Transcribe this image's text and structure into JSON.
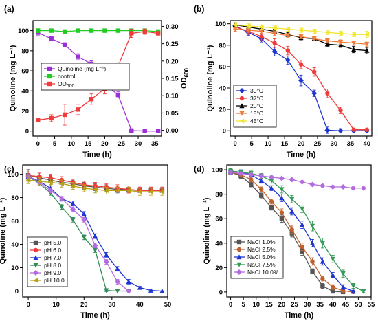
{
  "chart_data": [
    {
      "type": "line",
      "panel_label": "(a)",
      "xlabel": "Time (h)",
      "ylabel": "Quinoline (mg L⁻¹)",
      "y2label": "OD",
      "y2label_sub": "600",
      "xlim": [
        -1.5,
        37
      ],
      "ylim": [
        -5,
        110
      ],
      "y2lim": [
        -0.0167,
        0.3167
      ],
      "xticks": [
        0,
        5,
        10,
        15,
        20,
        25,
        30,
        35
      ],
      "yticks": [
        0,
        20,
        40,
        60,
        80,
        100
      ],
      "y2ticks": [
        0.0,
        0.05,
        0.1,
        0.15,
        0.2,
        0.25,
        0.3
      ],
      "legend": "center-left",
      "series": [
        {
          "name": "Quinoline (mg L⁻¹)",
          "color": "#9b30d8",
          "marker": "square",
          "axis": "left",
          "x": [
            0,
            4,
            8,
            12,
            16,
            20,
            24,
            28,
            32,
            36
          ],
          "y": [
            98,
            92,
            86,
            74,
            67,
            47,
            36,
            0.5,
            0,
            0
          ],
          "err": [
            3,
            2,
            2,
            3,
            3,
            4,
            3,
            2,
            0,
            0
          ]
        },
        {
          "name": "control",
          "color": "#22cc22",
          "marker": "square",
          "axis": "left",
          "x": [
            0,
            4,
            8,
            12,
            16,
            20,
            24,
            28,
            32,
            36
          ],
          "y": [
            100,
            100,
            99,
            100,
            100,
            100,
            100,
            100,
            100,
            99
          ],
          "err": [
            2,
            1,
            2,
            1,
            1,
            1,
            1,
            1,
            1,
            2
          ]
        },
        {
          "name": "OD",
          "name_sub": "600",
          "color": "#ee3b3b",
          "marker": "square",
          "axis": "right",
          "x": [
            0,
            4,
            8,
            12,
            16,
            20,
            24,
            28,
            32,
            36
          ],
          "y": [
            0.03,
            0.035,
            0.045,
            0.06,
            0.09,
            0.12,
            0.185,
            0.28,
            0.285,
            0.28
          ],
          "err": [
            0.003,
            0.01,
            0.03,
            0.015,
            0.015,
            0.015,
            0.01,
            0.012,
            0.008,
            0.005
          ]
        }
      ]
    },
    {
      "type": "line",
      "panel_label": "(b)",
      "xlabel": "Time (h)",
      "ylabel": "Quinoline (mg L⁻¹)",
      "xlim": [
        -1.5,
        41.5
      ],
      "ylim": [
        -5,
        103
      ],
      "xticks": [
        0,
        5,
        10,
        15,
        20,
        25,
        30,
        35,
        40
      ],
      "yticks": [
        0,
        20,
        40,
        60,
        80,
        100
      ],
      "legend": "center-left",
      "series": [
        {
          "name": "30°C",
          "color": "#1f35d0",
          "marker": "diamond",
          "x": [
            0,
            4,
            8,
            12,
            16,
            20,
            24,
            28,
            32,
            36,
            40
          ],
          "y": [
            98,
            92,
            86,
            74,
            66,
            47,
            35,
            0.5,
            0,
            0,
            0
          ],
          "err": [
            3,
            3,
            3,
            4,
            4,
            5,
            3,
            3,
            2,
            1,
            1
          ]
        },
        {
          "name": "37°C",
          "color": "#ee3b3b",
          "marker": "circle",
          "x": [
            0,
            4,
            8,
            12,
            16,
            20,
            24,
            28,
            32,
            36,
            40
          ],
          "y": [
            97,
            93,
            88,
            82,
            75,
            62,
            55,
            35,
            19,
            1,
            1
          ],
          "err": [
            2,
            3,
            3,
            4,
            4,
            4,
            4,
            4,
            3,
            1,
            1
          ]
        },
        {
          "name": "20°C",
          "color": "#000000",
          "marker": "triangle",
          "x": [
            0,
            4,
            8,
            12,
            16,
            20,
            24,
            28,
            32,
            36,
            40
          ],
          "y": [
            99,
            97,
            95,
            93,
            90,
            87,
            86,
            81,
            80,
            76,
            75
          ],
          "err": [
            2,
            1,
            2,
            2,
            2,
            2,
            2,
            2,
            2,
            3,
            3
          ]
        },
        {
          "name": "15°C",
          "color": "#f07c3a",
          "marker": "triangle-down",
          "x": [
            0,
            4,
            8,
            12,
            16,
            20,
            24,
            28,
            32,
            36,
            40
          ],
          "y": [
            95,
            94,
            93,
            91,
            89,
            88,
            86,
            84,
            83,
            82,
            81
          ],
          "err": [
            2,
            2,
            2,
            2,
            2,
            2,
            2,
            2,
            2,
            2,
            2
          ]
        },
        {
          "name": "45°C",
          "color": "#f2e62e",
          "marker": "triangle-left",
          "x": [
            0,
            4,
            8,
            12,
            16,
            20,
            24,
            28,
            32,
            36,
            40
          ],
          "y": [
            99,
            98,
            97,
            96,
            95,
            94,
            93,
            92,
            91,
            90,
            90
          ],
          "err": [
            2,
            2,
            2,
            2,
            2,
            2,
            2,
            2,
            2,
            2,
            3
          ]
        }
      ]
    },
    {
      "type": "line",
      "panel_label": "(c)",
      "xlabel": "Time (h)",
      "ylabel": "Quinoline (mg L⁻¹)",
      "xlim": [
        -2,
        50
      ],
      "ylim": [
        -5,
        108
      ],
      "xticks": [
        0,
        10,
        20,
        30,
        40,
        50
      ],
      "yticks": [
        0,
        20,
        40,
        60,
        80,
        100
      ],
      "legend": "bottom-left",
      "series": [
        {
          "name": "pH 5.0",
          "color": "#555555",
          "marker": "square",
          "x": [
            0,
            4,
            8,
            12,
            16,
            20,
            24,
            28,
            32,
            36,
            40,
            44,
            48
          ],
          "y": [
            99,
            97,
            95,
            93,
            92,
            90,
            89,
            88,
            87,
            87,
            86,
            86,
            86
          ],
          "err": [
            5,
            4,
            4,
            3,
            3,
            3,
            3,
            3,
            3,
            3,
            3,
            3,
            3
          ]
        },
        {
          "name": "pH 6.0",
          "color": "#ee3b3b",
          "marker": "circle",
          "x": [
            0,
            4,
            8,
            12,
            16,
            20,
            24,
            28,
            32,
            36,
            40,
            44,
            48
          ],
          "y": [
            99,
            98,
            97,
            95,
            93,
            91,
            90,
            89,
            88,
            87,
            86,
            86,
            86
          ],
          "err": [
            3,
            3,
            3,
            3,
            3,
            3,
            3,
            3,
            3,
            3,
            3,
            3,
            3
          ]
        },
        {
          "name": "pH 7.0",
          "color": "#1f35d0",
          "marker": "triangle",
          "x": [
            0,
            4,
            8,
            12,
            16,
            20,
            24,
            28,
            32,
            36,
            40,
            44,
            48
          ],
          "y": [
            98,
            94,
            88,
            79,
            75,
            66,
            47,
            31,
            19,
            8,
            3,
            0.5,
            0
          ],
          "err": [
            2,
            2,
            2,
            2,
            2,
            2,
            2,
            2,
            2,
            2,
            1,
            1,
            0
          ]
        },
        {
          "name": "pH 8.0",
          "color": "#2e8b57",
          "marker": "triangle-down",
          "x": [
            0,
            4,
            8,
            12,
            16,
            20,
            24,
            28,
            32,
            36
          ],
          "y": [
            98,
            92,
            84,
            72,
            61,
            46,
            35,
            0.5,
            0,
            0
          ],
          "err": [
            2,
            2,
            2,
            2,
            2,
            2,
            2,
            1,
            0,
            0
          ]
        },
        {
          "name": "pH 9.0",
          "color": "#b36be0",
          "marker": "diamond",
          "x": [
            0,
            4,
            8,
            12,
            16,
            20,
            24,
            28,
            32,
            36
          ],
          "y": [
            98,
            93,
            86,
            79,
            70,
            61,
            39,
            25,
            8,
            0
          ],
          "err": [
            2,
            2,
            2,
            2,
            2,
            2,
            2,
            2,
            2,
            0
          ]
        },
        {
          "name": "pH 10.0",
          "color": "#b8a012",
          "marker": "triangle-left",
          "x": [
            0,
            4,
            8,
            12,
            16,
            20,
            24,
            28,
            32,
            36,
            40,
            44,
            48
          ],
          "y": [
            95,
            94,
            93,
            92,
            90,
            88,
            87,
            86,
            86,
            86,
            85,
            85,
            85
          ],
          "err": [
            3,
            3,
            3,
            3,
            3,
            3,
            3,
            3,
            3,
            3,
            3,
            3,
            3
          ]
        }
      ]
    },
    {
      "type": "line",
      "panel_label": "(d)",
      "xlabel": "Time (h)",
      "ylabel": "Quinoline (mg L⁻¹)",
      "xlim": [
        -1.5,
        55
      ],
      "ylim": [
        -4,
        104
      ],
      "xticks": [
        0,
        5,
        10,
        15,
        20,
        25,
        30,
        35,
        40,
        45,
        50,
        55
      ],
      "yticks": [
        0,
        20,
        40,
        60,
        80,
        100
      ],
      "legend": "bottom-left",
      "series": [
        {
          "name": "NaCl 1.0%",
          "color": "#555555",
          "marker": "square",
          "x": [
            0,
            4,
            8,
            12,
            16,
            20,
            24,
            28,
            32,
            36,
            40,
            44
          ],
          "y": [
            98,
            95,
            88,
            79,
            69,
            60,
            48,
            33,
            17,
            5,
            0.5,
            0
          ],
          "err": [
            2,
            2,
            2,
            2,
            2,
            3,
            3,
            3,
            2,
            2,
            1,
            0
          ]
        },
        {
          "name": "NaCl 2.5%",
          "color": "#c0612c",
          "marker": "circle",
          "x": [
            0,
            4,
            8,
            12,
            16,
            20,
            24,
            28,
            32,
            36,
            40,
            44,
            48
          ],
          "y": [
            98,
            96,
            92,
            84,
            74,
            65,
            51,
            37,
            25,
            11,
            4,
            1,
            0
          ],
          "err": [
            2,
            2,
            2,
            2,
            2,
            3,
            3,
            3,
            3,
            2,
            2,
            1,
            0
          ]
        },
        {
          "name": "NaCl 5.0%",
          "color": "#1f35d0",
          "marker": "triangle",
          "x": [
            0,
            4,
            8,
            12,
            16,
            20,
            24,
            28,
            32,
            36,
            40,
            44,
            48
          ],
          "y": [
            99,
            98,
            96,
            91,
            85,
            77,
            66,
            55,
            40,
            25,
            14,
            4,
            0.5
          ],
          "err": [
            2,
            2,
            2,
            2,
            2,
            3,
            3,
            3,
            3,
            3,
            2,
            2,
            1
          ]
        },
        {
          "name": "NaCl 7.5%",
          "color": "#3a9a5a",
          "marker": "triangle-down",
          "x": [
            0,
            4,
            8,
            12,
            16,
            20,
            24,
            28,
            32,
            36,
            40,
            44,
            48,
            52
          ],
          "y": [
            99,
            98,
            97,
            95,
            91,
            84,
            76,
            68,
            54,
            40,
            27,
            15,
            5,
            0.5
          ],
          "err": [
            2,
            2,
            2,
            2,
            2,
            3,
            3,
            3,
            4,
            4,
            3,
            3,
            2,
            1
          ]
        },
        {
          "name": "NaCl 10.0%",
          "color": "#b36be0",
          "marker": "diamond",
          "x": [
            0,
            4,
            8,
            12,
            16,
            20,
            24,
            28,
            32,
            36,
            40,
            44,
            48,
            52
          ],
          "y": [
            98,
            97,
            96,
            95,
            94,
            93,
            92,
            90,
            88,
            87,
            86,
            86,
            85,
            85
          ],
          "err": [
            1,
            1,
            1,
            1,
            1,
            1,
            1,
            1,
            1,
            1,
            1,
            1,
            1,
            1
          ]
        }
      ]
    }
  ]
}
